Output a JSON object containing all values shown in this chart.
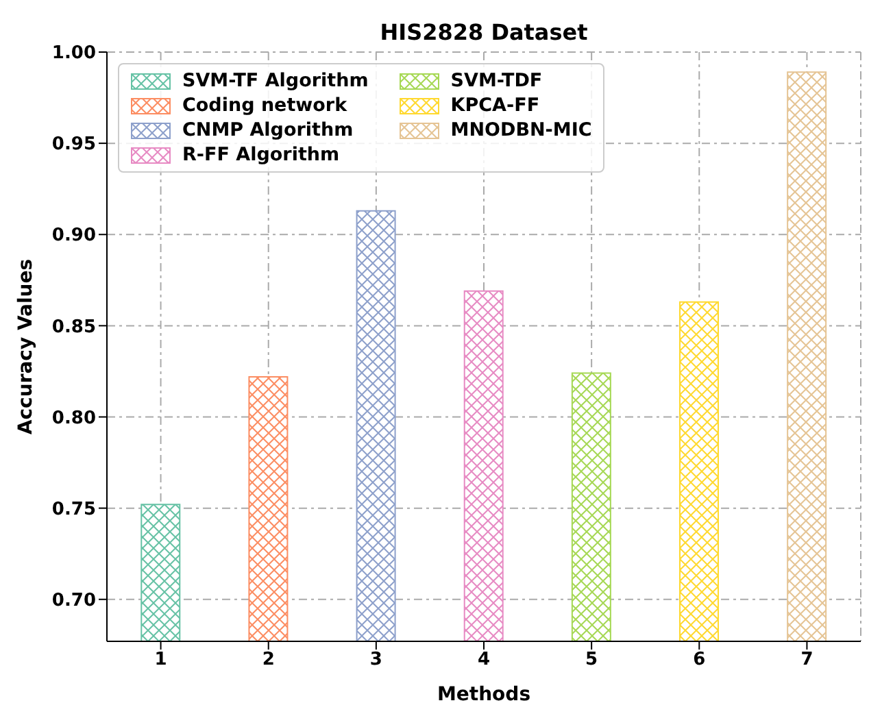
{
  "chart_data": {
    "type": "bar",
    "title": "HIS2828 Dataset",
    "xlabel": "Methods",
    "ylabel": "Accuracy Values",
    "categories": [
      "1",
      "2",
      "3",
      "4",
      "5",
      "6",
      "7"
    ],
    "series": [
      {
        "name": "SVM-TF Algorithm",
        "color": "#66c2a5",
        "values": [
          0.752,
          null,
          null,
          null,
          null,
          null,
          null
        ]
      },
      {
        "name": "Coding network",
        "color": "#fc8d62",
        "values": [
          null,
          0.822,
          null,
          null,
          null,
          null,
          null
        ]
      },
      {
        "name": "CNMP Algorithm",
        "color": "#8da0cb",
        "values": [
          null,
          null,
          0.913,
          null,
          null,
          null,
          null
        ]
      },
      {
        "name": "R-FF Algorithm",
        "color": "#e78ac3",
        "values": [
          null,
          null,
          null,
          0.869,
          null,
          null,
          null
        ]
      },
      {
        "name": "SVM-TDF",
        "color": "#a6d854",
        "values": [
          null,
          null,
          null,
          null,
          0.824,
          null,
          null
        ]
      },
      {
        "name": "KPCA-FF",
        "color": "#ffd92f",
        "values": [
          null,
          null,
          null,
          null,
          null,
          0.863,
          null
        ]
      },
      {
        "name": "MNODBN-MIC",
        "color": "#e5c494",
        "values": [
          null,
          null,
          null,
          null,
          null,
          null,
          0.989
        ]
      }
    ],
    "ylim": [
      0.677,
      1.0
    ],
    "yticks": [
      {
        "value": 0.7,
        "label": "0.70"
      },
      {
        "value": 0.75,
        "label": "0.75"
      },
      {
        "value": 0.8,
        "label": "0.80"
      },
      {
        "value": 0.85,
        "label": "0.85"
      },
      {
        "value": 0.9,
        "label": "0.90"
      },
      {
        "value": 0.95,
        "label": "0.95"
      },
      {
        "value": 1.0,
        "label": "1.00"
      }
    ],
    "grid": true,
    "legend": "top left"
  }
}
